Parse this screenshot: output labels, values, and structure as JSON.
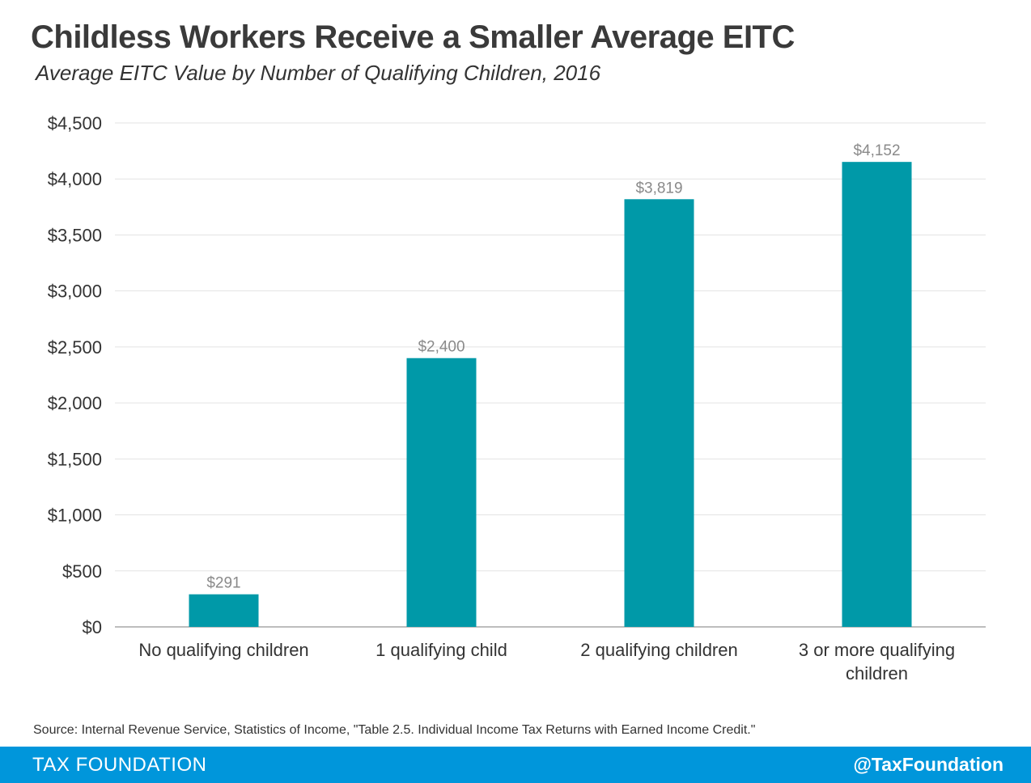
{
  "title": "Childless Workers Receive a Smaller Average EITC",
  "subtitle": "Average EITC Value by Number of Qualifying Children, 2016",
  "source": "Source: Internal Revenue Service, Statistics of Income, \"Table 2.5. Individual Income Tax Returns with Earned Income Credit.\"",
  "footer": {
    "brand": "TAX FOUNDATION",
    "handle": "@TaxFoundation"
  },
  "colors": {
    "bar": "#0099a8",
    "footer": "#0096db"
  },
  "chart_data": {
    "type": "bar",
    "categories": [
      [
        "No qualifying children"
      ],
      [
        "1 qualifying child"
      ],
      [
        "2 qualifying children"
      ],
      [
        "3 or more qualifying",
        "children"
      ]
    ],
    "values": [
      291,
      2400,
      3819,
      4152
    ],
    "data_labels": [
      "$291",
      "$2,400",
      "$3,819",
      "$4,152"
    ],
    "y_ticks": [
      0,
      500,
      1000,
      1500,
      2000,
      2500,
      3000,
      3500,
      4000,
      4500
    ],
    "y_tick_labels": [
      "$0",
      "$500",
      "$1,000",
      "$1,500",
      "$2,000",
      "$2,500",
      "$3,000",
      "$3,500",
      "$4,000",
      "$4,500"
    ],
    "ylim": [
      0,
      4500
    ],
    "grid": true,
    "legend": false
  }
}
